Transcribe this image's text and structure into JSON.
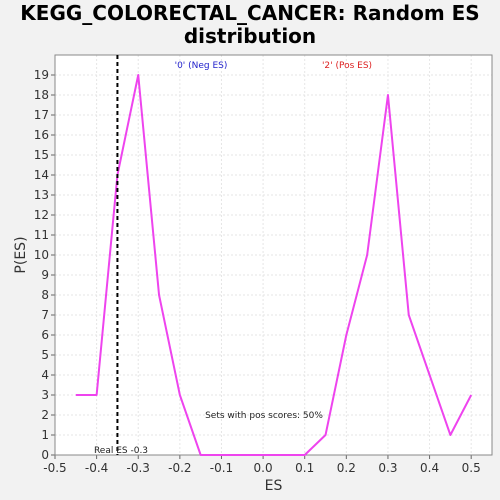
{
  "title_line1": "KEGG_COLORECTAL_CANCER: Random ES",
  "title_line2": "distribution",
  "chart_data": {
    "type": "line",
    "xlabel": "ES",
    "ylabel": "P(ES)",
    "xlim": [
      -0.5,
      0.55
    ],
    "ylim": [
      0,
      20
    ],
    "x_ticks": [
      "-0.5",
      "-0.4",
      "-0.3",
      "-0.2",
      "-0.1",
      "0.0",
      "0.1",
      "0.2",
      "0.3",
      "0.4",
      "0.5"
    ],
    "y_ticks": [
      "0",
      "1",
      "2",
      "3",
      "4",
      "5",
      "6",
      "7",
      "8",
      "9",
      "10",
      "11",
      "12",
      "13",
      "14",
      "15",
      "16",
      "17",
      "18",
      "19"
    ],
    "grid": true,
    "series": [
      {
        "color": "#ee44ee",
        "x": [
          -0.45,
          -0.4,
          -0.35,
          -0.3,
          -0.25,
          -0.2,
          -0.15,
          -0.1,
          -0.05,
          0.0,
          0.05,
          0.1,
          0.15,
          0.2,
          0.25,
          0.3,
          0.35,
          0.4,
          0.45,
          0.5
        ],
        "y": [
          3,
          3,
          14,
          19,
          8,
          3,
          0,
          0,
          0,
          0,
          0,
          0,
          1,
          6,
          10,
          18,
          7,
          4,
          1,
          3
        ]
      }
    ],
    "annotations": {
      "neg_label": "'0' (Neg ES)",
      "neg_color": "#2222cc",
      "pos_label": "'2' (Pos ES)",
      "pos_color": "#dd2222",
      "pos_scores_text": "Sets with pos scores: 50%",
      "real_es_value": -0.35,
      "real_es_label": "Real ES -0.3"
    }
  }
}
